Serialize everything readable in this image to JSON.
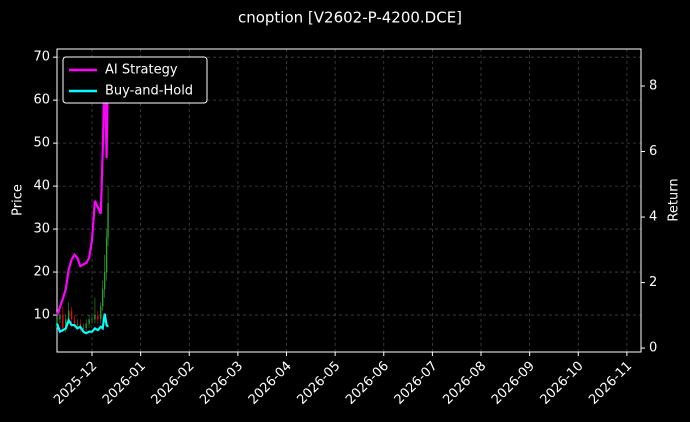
{
  "chart_data": {
    "type": "candlestick",
    "title": "cnoption [V2602-P-4200.DCE]",
    "ylabel": "Price",
    "y2label": "Return",
    "x": [
      0.28,
      0.34,
      0.4,
      0.46,
      0.52,
      0.58,
      0.64,
      0.7,
      0.76,
      0.82,
      0.88,
      0.94,
      1.0,
      1.06,
      1.12,
      1.18,
      1.22,
      1.26,
      1.3,
      1.33
    ],
    "open": [
      8,
      9,
      10,
      7,
      9,
      11,
      9,
      8,
      8,
      7,
      7,
      8,
      9,
      9,
      10,
      9,
      12,
      16,
      20,
      28
    ],
    "high": [
      10,
      12,
      12,
      10,
      13,
      12,
      10,
      9,
      9,
      8,
      9,
      10,
      10,
      14,
      11,
      13,
      18,
      24,
      30,
      40
    ],
    "low": [
      7,
      8,
      6,
      6,
      8,
      8,
      7,
      7,
      6,
      6,
      6,
      7,
      8,
      8,
      8,
      8,
      11,
      14,
      18,
      26
    ],
    "close": [
      9,
      10,
      7,
      9,
      11,
      9,
      8,
      8,
      7,
      7,
      8,
      9,
      9,
      10,
      9,
      12,
      16,
      20,
      28,
      36
    ],
    "up_color": "#2ca02c",
    "down_color": "#ff0000",
    "series": [
      {
        "name": "AI Strategy",
        "color": "#ff00ff",
        "axis": "y2",
        "values": [
          1.0,
          1.25,
          1.5,
          1.8,
          2.4,
          2.7,
          2.85,
          2.75,
          2.5,
          2.55,
          2.6,
          2.75,
          3.3,
          4.5,
          4.3,
          4.1,
          6.0,
          8.5,
          5.8,
          8.8
        ]
      },
      {
        "name": "Buy-and-Hold",
        "color": "#00ffff",
        "axis": "y2",
        "values": [
          0.75,
          0.5,
          0.55,
          0.6,
          0.85,
          0.7,
          0.7,
          0.6,
          0.65,
          0.5,
          0.45,
          0.5,
          0.5,
          0.6,
          0.55,
          0.65,
          0.6,
          1.05,
          0.7,
          0.65
        ]
      }
    ],
    "xlim": [
      0.28,
      12.29
    ],
    "xticks": [
      {
        "value": 1,
        "label": "2025-12"
      },
      {
        "value": 2,
        "label": "2026-01"
      },
      {
        "value": 3,
        "label": "2026-02"
      },
      {
        "value": 4,
        "label": "2026-03"
      },
      {
        "value": 5,
        "label": "2026-04"
      },
      {
        "value": 6,
        "label": "2026-05"
      },
      {
        "value": 7,
        "label": "2026-06"
      },
      {
        "value": 8,
        "label": "2026-07"
      },
      {
        "value": 9,
        "label": "2026-08"
      },
      {
        "value": 10,
        "label": "2026-09"
      },
      {
        "value": 11,
        "label": "2026-10"
      },
      {
        "value": 12,
        "label": "2026-11"
      }
    ],
    "ylim": [
      1.4,
      71.9
    ],
    "yticks": [
      10,
      20,
      30,
      40,
      50,
      60,
      70
    ],
    "y2lim": [
      -0.12,
      9.13
    ],
    "y2ticks": [
      0,
      2,
      4,
      6,
      8
    ],
    "grid": true,
    "legend": "upper left"
  }
}
